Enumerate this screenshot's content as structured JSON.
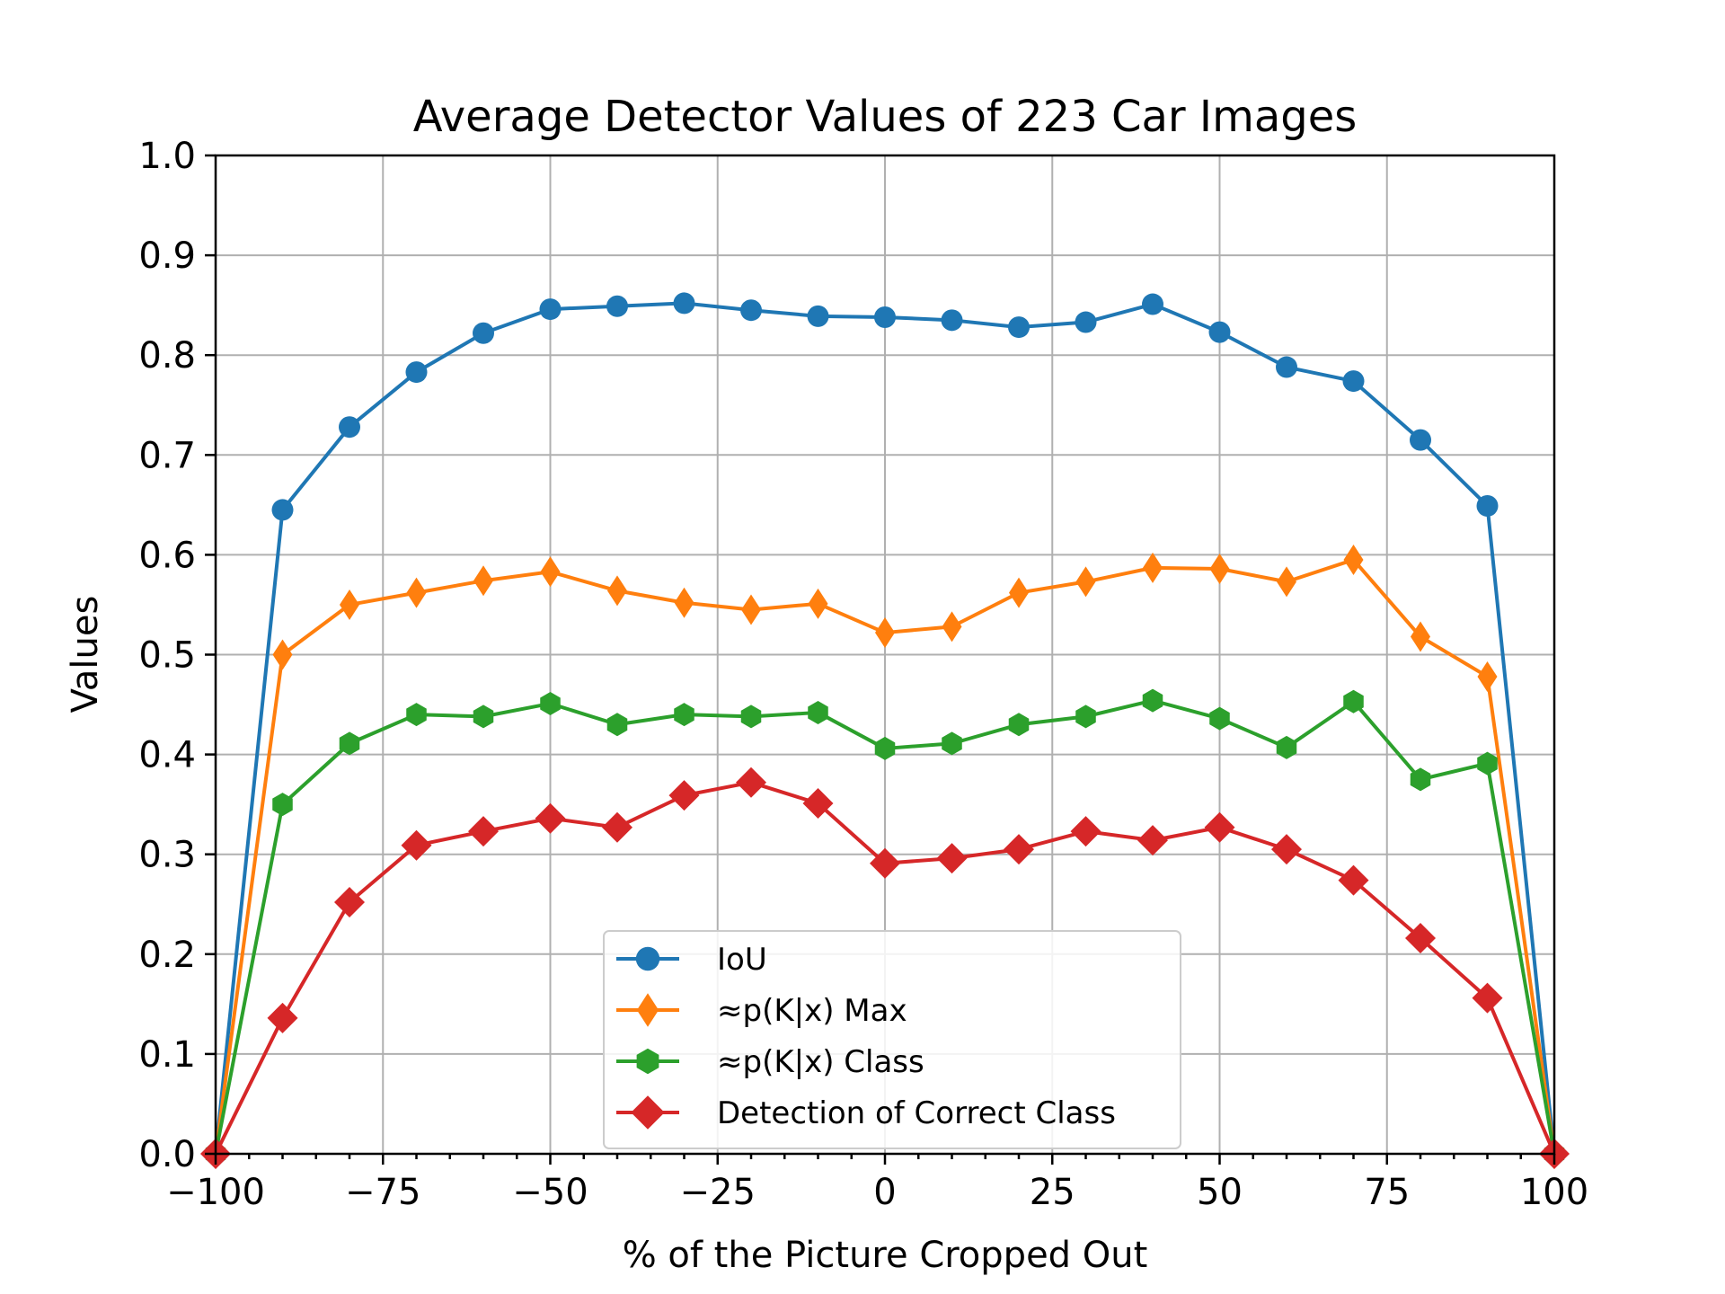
{
  "chart_data": {
    "type": "line",
    "title": "Average Detector Values of 223 Car Images",
    "xlabel": "% of the Picture Cropped Out",
    "ylabel": "Values",
    "xlim": [
      -100,
      100
    ],
    "ylim": [
      0.0,
      1.0
    ],
    "grid": true,
    "legend_position": "lower-center",
    "x_ticks": [
      -100,
      -75,
      -50,
      -25,
      0,
      25,
      50,
      75,
      100
    ],
    "x_tick_labels": [
      "−100",
      "−75",
      "−50",
      "−25",
      "0",
      "25",
      "50",
      "75",
      "100"
    ],
    "y_ticks": [
      0.0,
      0.1,
      0.2,
      0.3,
      0.4,
      0.5,
      0.6,
      0.7,
      0.8,
      0.9,
      1.0
    ],
    "y_tick_labels": [
      "0.0",
      "0.1",
      "0.2",
      "0.3",
      "0.4",
      "0.5",
      "0.6",
      "0.7",
      "0.8",
      "0.9",
      "1.0"
    ],
    "x": [
      -100,
      -90,
      -80,
      -70,
      -60,
      -50,
      -40,
      -30,
      -20,
      -10,
      0,
      10,
      20,
      30,
      40,
      50,
      60,
      70,
      80,
      90,
      100
    ],
    "series": [
      {
        "name": "IoU",
        "color": "#1f77b4",
        "marker": "circle",
        "values": [
          0.0,
          0.645,
          0.728,
          0.783,
          0.822,
          0.846,
          0.849,
          0.852,
          0.845,
          0.839,
          0.838,
          0.835,
          0.828,
          0.833,
          0.851,
          0.823,
          0.788,
          0.774,
          0.715,
          0.649,
          0.0
        ]
      },
      {
        "name": "≈p(K|x) Max",
        "color": "#ff7f0e",
        "marker": "thin-diamond",
        "values": [
          0.0,
          0.5,
          0.55,
          0.562,
          0.574,
          0.583,
          0.564,
          0.552,
          0.545,
          0.551,
          0.522,
          0.528,
          0.562,
          0.573,
          0.587,
          0.586,
          0.573,
          0.595,
          0.518,
          0.478,
          0.0
        ]
      },
      {
        "name": "≈p(K|x) Class",
        "color": "#2ca02c",
        "marker": "hexagon",
        "values": [
          0.0,
          0.35,
          0.411,
          0.44,
          0.438,
          0.451,
          0.43,
          0.44,
          0.438,
          0.442,
          0.406,
          0.411,
          0.43,
          0.438,
          0.454,
          0.436,
          0.407,
          0.453,
          0.375,
          0.391,
          0.0
        ]
      },
      {
        "name": "Detection of Correct Class",
        "color": "#d62728",
        "marker": "diamond",
        "values": [
          0.0,
          0.136,
          0.252,
          0.309,
          0.323,
          0.336,
          0.327,
          0.359,
          0.372,
          0.351,
          0.291,
          0.296,
          0.305,
          0.323,
          0.314,
          0.327,
          0.305,
          0.274,
          0.216,
          0.156,
          0.0
        ]
      }
    ]
  }
}
